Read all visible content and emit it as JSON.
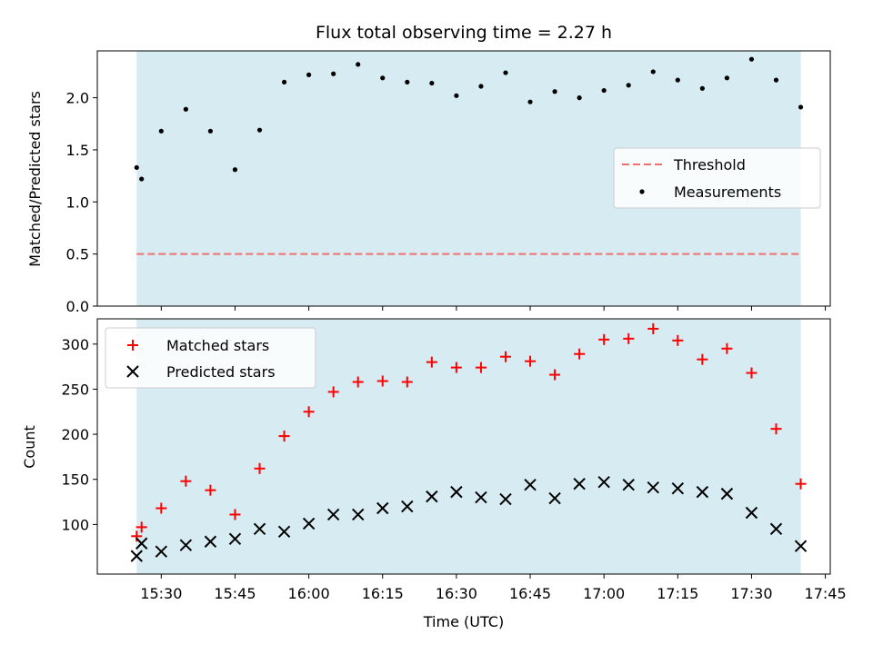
{
  "chart_data": [
    {
      "type": "scatter",
      "title": "Flux total observing time = 2.27 h",
      "xlabel": "",
      "ylabel": "Matched/Predicted stars",
      "ylim": [
        0,
        2.45
      ],
      "y_ticks": [
        "0.0",
        "0.5",
        "1.0",
        "1.5",
        "2.0"
      ],
      "y_tick_values": [
        0,
        0.5,
        1.0,
        1.5,
        2.0
      ],
      "shaded_span": [
        "15:25",
        "17:40"
      ],
      "shade_color": "#add8e6",
      "threshold": {
        "name": "Threshold",
        "value": 0.5,
        "color": "#f07070"
      },
      "series": [
        {
          "name": "Measurements",
          "marker": "dot",
          "color": "#000000",
          "x": [
            "15:25",
            "15:26",
            "15:30",
            "15:35",
            "15:40",
            "15:45",
            "15:50",
            "15:55",
            "16:00",
            "16:05",
            "16:10",
            "16:15",
            "16:20",
            "16:25",
            "16:30",
            "16:35",
            "16:40",
            "16:45",
            "16:50",
            "16:55",
            "17:00",
            "17:05",
            "17:10",
            "17:15",
            "17:20",
            "17:25",
            "17:30",
            "17:35",
            "17:40"
          ],
          "values": [
            1.33,
            1.22,
            1.68,
            1.89,
            1.68,
            1.31,
            1.69,
            2.15,
            2.22,
            2.23,
            2.32,
            2.19,
            2.15,
            2.14,
            2.02,
            2.11,
            2.24,
            1.96,
            2.06,
            2.0,
            2.07,
            2.12,
            2.25,
            2.17,
            2.09,
            2.19,
            2.37,
            2.17,
            1.91
          ]
        }
      ],
      "legend": {
        "placement": "center-right",
        "entries": [
          "Threshold",
          "Measurements"
        ]
      }
    },
    {
      "type": "scatter",
      "title": "",
      "xlabel": "Time (UTC)",
      "ylabel": "Count",
      "xlim": [
        "15:17",
        "17:46"
      ],
      "ylim": [
        45,
        328
      ],
      "x_ticks": [
        "15:30",
        "15:45",
        "16:00",
        "16:15",
        "16:30",
        "16:45",
        "17:00",
        "17:15",
        "17:30",
        "17:45"
      ],
      "y_ticks": [
        "100",
        "150",
        "200",
        "250",
        "300"
      ],
      "y_tick_values": [
        100,
        150,
        200,
        250,
        300
      ],
      "series": [
        {
          "name": "Matched stars",
          "marker": "plus",
          "color": "#ff0000",
          "x": [
            "15:25",
            "15:26",
            "15:30",
            "15:35",
            "15:40",
            "15:45",
            "15:50",
            "15:55",
            "16:00",
            "16:05",
            "16:10",
            "16:15",
            "16:20",
            "16:25",
            "16:30",
            "16:35",
            "16:40",
            "16:45",
            "16:50",
            "16:55",
            "17:00",
            "17:05",
            "17:10",
            "17:15",
            "17:20",
            "17:25",
            "17:30",
            "17:35",
            "17:40"
          ],
          "values": [
            87,
            97,
            118,
            148,
            138,
            111,
            162,
            198,
            225,
            247,
            258,
            259,
            258,
            280,
            274,
            274,
            286,
            281,
            266,
            289,
            305,
            306,
            317,
            304,
            283,
            295,
            268,
            206,
            145
          ]
        },
        {
          "name": "Predicted stars",
          "marker": "x",
          "color": "#000000",
          "x": [
            "15:25",
            "15:26",
            "15:30",
            "15:35",
            "15:40",
            "15:45",
            "15:50",
            "15:55",
            "16:00",
            "16:05",
            "16:10",
            "16:15",
            "16:20",
            "16:25",
            "16:30",
            "16:35",
            "16:40",
            "16:45",
            "16:50",
            "16:55",
            "17:00",
            "17:05",
            "17:10",
            "17:15",
            "17:20",
            "17:25",
            "17:30",
            "17:35",
            "17:40"
          ],
          "values": [
            65,
            79,
            70,
            77,
            81,
            84,
            95,
            92,
            101,
            111,
            111,
            118,
            120,
            131,
            136,
            130,
            128,
            144,
            129,
            145,
            147,
            144,
            141,
            140,
            136,
            134,
            113,
            95,
            76
          ]
        }
      ],
      "legend": {
        "placement": "top-left",
        "entries": [
          "Matched stars",
          "Predicted stars"
        ]
      }
    }
  ]
}
